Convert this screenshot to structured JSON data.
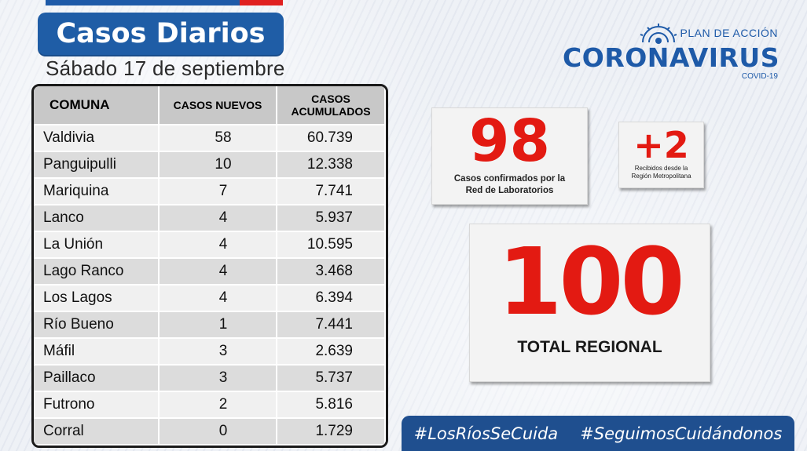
{
  "header": {
    "title": "Casos Diarios",
    "date": "Sábado 17  de septiembre"
  },
  "logo": {
    "plan": "PLAN DE ACCIÓN",
    "name": "CORONAVIRUS",
    "sub": "COVID-19"
  },
  "table": {
    "headers": [
      "COMUNA",
      "CASOS NUEVOS",
      "CASOS ACUMULADOS"
    ],
    "rows": [
      {
        "comuna": "Valdivia",
        "nuevos": "58",
        "acumulados": "60.739"
      },
      {
        "comuna": "Panguipulli",
        "nuevos": "10",
        "acumulados": "12.338"
      },
      {
        "comuna": "Mariquina",
        "nuevos": "7",
        "acumulados": "7.741"
      },
      {
        "comuna": "Lanco",
        "nuevos": "4",
        "acumulados": "5.937"
      },
      {
        "comuna": "La Unión",
        "nuevos": "4",
        "acumulados": "10.595"
      },
      {
        "comuna": "Lago Ranco",
        "nuevos": "4",
        "acumulados": "3.468"
      },
      {
        "comuna": "Los Lagos",
        "nuevos": "4",
        "acumulados": "6.394"
      },
      {
        "comuna": "Río Bueno",
        "nuevos": "1",
        "acumulados": "7.441"
      },
      {
        "comuna": "Máfil",
        "nuevos": "3",
        "acumulados": "2.639"
      },
      {
        "comuna": "Paillaco",
        "nuevos": "3",
        "acumulados": "5.737"
      },
      {
        "comuna": "Futrono",
        "nuevos": "2",
        "acumulados": "5.816"
      },
      {
        "comuna": "Corral",
        "nuevos": "0",
        "acumulados": "1.729"
      }
    ]
  },
  "stats": {
    "lab_count": "98",
    "lab_label": "Casos confirmados por la Red de Laboratorios",
    "rm_count": "+2",
    "rm_label": "Recibidos desde la Región Metropolitana",
    "total": "100",
    "total_label": "TOTAL REGIONAL"
  },
  "hashtags": [
    "#LosRíosSeCuida",
    "#SeguimosCuidándonos"
  ],
  "colors": {
    "brand_blue": "#1f5da6",
    "accent_red": "#e31a12"
  }
}
